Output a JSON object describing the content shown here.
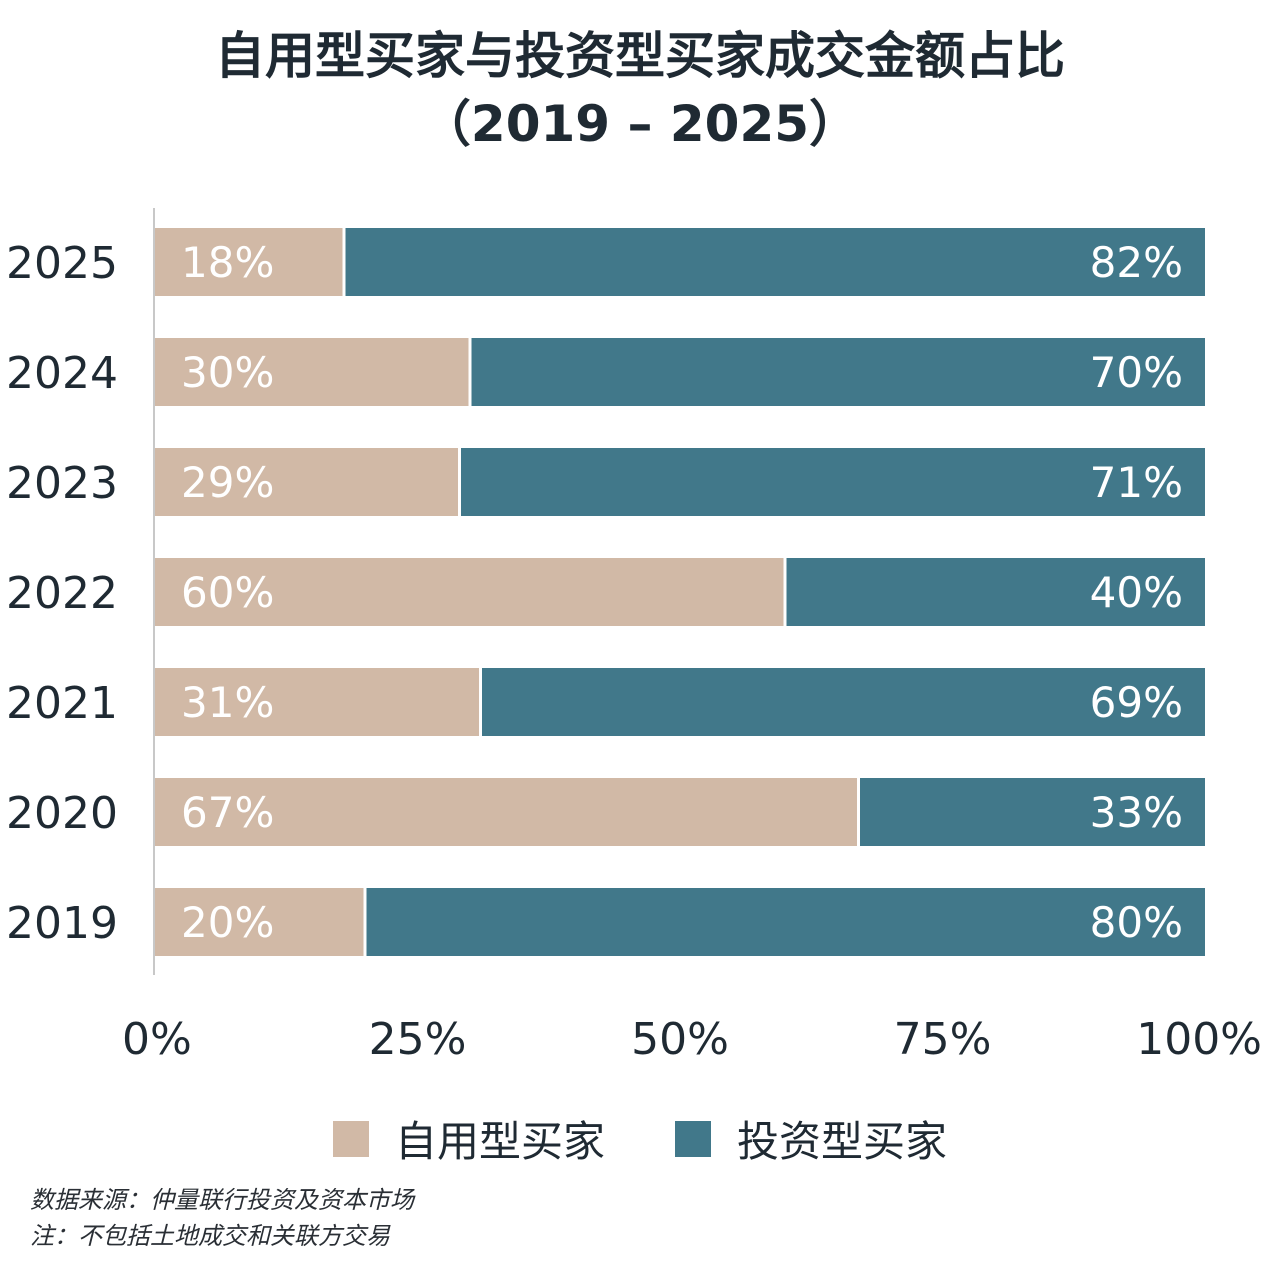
{
  "title_line1": "自用型买家与投资型买家成交金额占比",
  "title_line2": "（2019 – 2025）",
  "chart_data": {
    "type": "bar",
    "orientation": "horizontal",
    "stacked": true,
    "categories": [
      "2025",
      "2024",
      "2023",
      "2022",
      "2021",
      "2020",
      "2019"
    ],
    "series": [
      {
        "name": "自用型买家",
        "color": "#d1b9a6",
        "values": [
          18,
          30,
          29,
          60,
          31,
          67,
          20
        ],
        "labels": [
          "18%",
          "30%",
          "29%",
          "60%",
          "31%",
          "67%",
          "20%"
        ]
      },
      {
        "name": "投资型买家",
        "color": "#41788a",
        "values": [
          82,
          70,
          71,
          40,
          69,
          33,
          80
        ],
        "labels": [
          "82%",
          "70%",
          "71%",
          "40%",
          "69%",
          "33%",
          "80%"
        ]
      }
    ],
    "xlim": [
      0,
      100
    ],
    "xticks": [
      "0%",
      "25%",
      "50%",
      "75%",
      "100%"
    ],
    "grid": false,
    "legend_position": "bottom"
  },
  "notes": {
    "source": "数据来源：仲量联行投资及资本市场",
    "note": "注：不包括土地成交和关联方交易"
  }
}
